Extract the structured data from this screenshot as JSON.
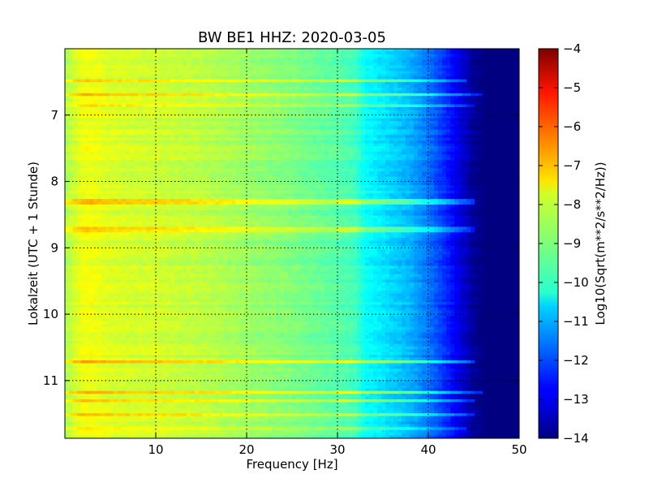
{
  "chart_data": {
    "type": "heatmap",
    "title": "BW BE1 HHZ: 2020-03-05",
    "xlabel": "Frequency [Hz]",
    "ylabel": "Lokalzeit (UTC + 1 Stunde)",
    "colorbar_label": "Log10(Sqrt(m**2/s**2/Hz))",
    "colormap": "jet",
    "grid": true,
    "xlim": [
      0,
      50
    ],
    "ylim": [
      11.87,
      6.0
    ],
    "clim": [
      -14,
      -4
    ],
    "x_ticks": [
      10,
      20,
      30,
      40,
      50
    ],
    "x_tick_labels": [
      "10",
      "20",
      "30",
      "40",
      "50"
    ],
    "y_ticks": [
      7,
      8,
      9,
      10,
      11
    ],
    "y_tick_labels": [
      "7",
      "8",
      "9",
      "10",
      "11"
    ],
    "colorbar_ticks": [
      -4,
      -5,
      -6,
      -7,
      -8,
      -9,
      -10,
      -11,
      -12,
      -13,
      -14
    ],
    "colorbar_tick_labels": [
      "−4",
      "−5",
      "−6",
      "−7",
      "−8",
      "−9",
      "−10",
      "−11",
      "−12",
      "−13",
      "−14"
    ],
    "spectrum_profile": {
      "frequency_hz": [
        0,
        1,
        2,
        3,
        5,
        8,
        10,
        12,
        15,
        20,
        25,
        30,
        32,
        33,
        35,
        38,
        40,
        42,
        44,
        45,
        46,
        50
      ],
      "log10_amplitude": [
        -8.6,
        -8.2,
        -7.9,
        -7.9,
        -8.1,
        -8.2,
        -8.2,
        -8.3,
        -8.4,
        -8.7,
        -9.0,
        -9.4,
        -9.6,
        -10.2,
        -10.5,
        -11.0,
        -11.6,
        -12.4,
        -13.3,
        -13.8,
        -14.0,
        -14.0
      ]
    },
    "bands": [
      {
        "time": 6.47,
        "log10_offset": 0.9,
        "f_max": 44
      },
      {
        "time": 6.7,
        "log10_offset": 1.2,
        "f_max": 46
      },
      {
        "time": 6.86,
        "log10_offset": 1.0,
        "f_max": 45
      },
      {
        "time": 8.3,
        "log10_offset": 1.1,
        "f_max": 45
      },
      {
        "time": 8.72,
        "log10_offset": 1.0,
        "f_max": 45
      },
      {
        "time": 10.73,
        "log10_offset": 1.3,
        "f_max": 45
      },
      {
        "time": 11.17,
        "log10_offset": 1.2,
        "f_max": 46
      },
      {
        "time": 11.3,
        "log10_offset": 1.1,
        "f_max": 45
      },
      {
        "time": 11.52,
        "log10_offset": 1.0,
        "f_max": 45
      },
      {
        "time": 11.72,
        "log10_offset": 0.8,
        "f_max": 44
      }
    ]
  }
}
